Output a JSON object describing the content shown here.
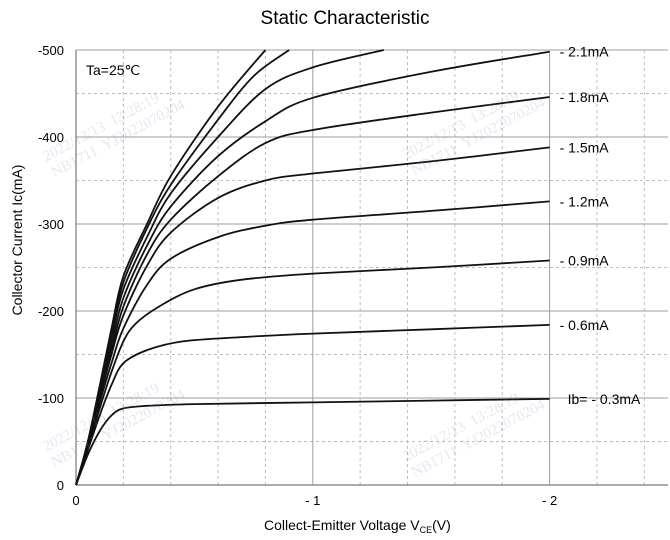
{
  "chart_data": {
    "type": "line",
    "title": "Static Characteristic",
    "xlabel_main": "Collect-Emitter Voltage   V",
    "xlabel_sub": "CE",
    "xlabel_unit": "(V)",
    "ylabel": "Collector  Current   Ic(mA)",
    "annotation": "Ta=25℃",
    "xlim": [
      0,
      -2.5
    ],
    "ylim": [
      0,
      -500
    ],
    "x_ticks": [
      0,
      -1,
      -2
    ],
    "x_tick_labels": [
      "0",
      "- 1",
      "- 2"
    ],
    "y_ticks": [
      0,
      -100,
      -200,
      -300,
      -400,
      -500
    ],
    "y_tick_labels": [
      "0",
      "-100",
      "-200",
      "-300",
      "-400",
      "-500"
    ],
    "grid": true,
    "series": [
      {
        "label": "Ib= - 0.3mA",
        "points": [
          [
            0,
            0
          ],
          [
            -0.05,
            -35
          ],
          [
            -0.1,
            -62
          ],
          [
            -0.15,
            -80
          ],
          [
            -0.2,
            -88
          ],
          [
            -0.3,
            -91
          ],
          [
            -0.5,
            -93
          ],
          [
            -1,
            -95
          ],
          [
            -1.5,
            -97
          ],
          [
            -2,
            -99
          ]
        ]
      },
      {
        "label": "- 0.6mA",
        "points": [
          [
            0,
            0
          ],
          [
            -0.05,
            -40
          ],
          [
            -0.1,
            -80
          ],
          [
            -0.15,
            -115
          ],
          [
            -0.2,
            -140
          ],
          [
            -0.3,
            -155
          ],
          [
            -0.45,
            -165
          ],
          [
            -0.7,
            -170
          ],
          [
            -1,
            -174
          ],
          [
            -1.5,
            -179
          ],
          [
            -2,
            -184
          ]
        ]
      },
      {
        "label": "- 0.9mA",
        "points": [
          [
            0,
            0
          ],
          [
            -0.05,
            -42
          ],
          [
            -0.1,
            -88
          ],
          [
            -0.15,
            -130
          ],
          [
            -0.2,
            -165
          ],
          [
            -0.25,
            -185
          ],
          [
            -0.35,
            -205
          ],
          [
            -0.5,
            -225
          ],
          [
            -0.7,
            -236
          ],
          [
            -1,
            -243
          ],
          [
            -1.5,
            -250
          ],
          [
            -2,
            -258
          ]
        ]
      },
      {
        "label": "- 1.2mA",
        "points": [
          [
            0,
            0
          ],
          [
            -0.05,
            -44
          ],
          [
            -0.1,
            -95
          ],
          [
            -0.15,
            -140
          ],
          [
            -0.2,
            -180
          ],
          [
            -0.3,
            -230
          ],
          [
            -0.4,
            -260
          ],
          [
            -0.6,
            -285
          ],
          [
            -0.8,
            -298
          ],
          [
            -1,
            -305
          ],
          [
            -1.5,
            -315
          ],
          [
            -2,
            -326
          ]
        ]
      },
      {
        "label": "- 1.5mA",
        "points": [
          [
            0,
            0
          ],
          [
            -0.05,
            -45
          ],
          [
            -0.1,
            -100
          ],
          [
            -0.15,
            -150
          ],
          [
            -0.2,
            -195
          ],
          [
            -0.3,
            -252
          ],
          [
            -0.4,
            -290
          ],
          [
            -0.6,
            -330
          ],
          [
            -0.8,
            -350
          ],
          [
            -1,
            -358
          ],
          [
            -1.5,
            -372
          ],
          [
            -2,
            -388
          ]
        ]
      },
      {
        "label": "- 1.8mA",
        "points": [
          [
            0,
            0
          ],
          [
            -0.05,
            -46
          ],
          [
            -0.1,
            -103
          ],
          [
            -0.15,
            -155
          ],
          [
            -0.2,
            -205
          ],
          [
            -0.3,
            -265
          ],
          [
            -0.4,
            -305
          ],
          [
            -0.6,
            -355
          ],
          [
            -0.8,
            -393
          ],
          [
            -1,
            -408
          ],
          [
            -1.5,
            -428
          ],
          [
            -2,
            -446
          ]
        ]
      },
      {
        "label": "- 2.1mA",
        "points": [
          [
            0,
            0
          ],
          [
            -0.05,
            -47
          ],
          [
            -0.1,
            -106
          ],
          [
            -0.15,
            -162
          ],
          [
            -0.2,
            -215
          ],
          [
            -0.3,
            -275
          ],
          [
            -0.4,
            -320
          ],
          [
            -0.6,
            -378
          ],
          [
            -0.8,
            -418
          ],
          [
            -1,
            -445
          ],
          [
            -1.5,
            -475
          ],
          [
            -2,
            -498
          ]
        ]
      },
      {
        "label": "",
        "points": [
          [
            0,
            0
          ],
          [
            -0.05,
            -48
          ],
          [
            -0.1,
            -110
          ],
          [
            -0.15,
            -170
          ],
          [
            -0.2,
            -225
          ],
          [
            -0.3,
            -285
          ],
          [
            -0.4,
            -335
          ],
          [
            -0.6,
            -400
          ],
          [
            -0.8,
            -455
          ],
          [
            -1,
            -480
          ],
          [
            -1.3,
            -500
          ]
        ]
      },
      {
        "label": "",
        "points": [
          [
            0,
            0
          ],
          [
            -0.05,
            -49
          ],
          [
            -0.1,
            -112
          ],
          [
            -0.15,
            -175
          ],
          [
            -0.2,
            -233
          ],
          [
            -0.3,
            -295
          ],
          [
            -0.4,
            -345
          ],
          [
            -0.6,
            -420
          ],
          [
            -0.75,
            -470
          ],
          [
            -0.9,
            -500
          ]
        ]
      },
      {
        "label": "",
        "points": [
          [
            0,
            0
          ],
          [
            -0.05,
            -50
          ],
          [
            -0.1,
            -114
          ],
          [
            -0.15,
            -180
          ],
          [
            -0.2,
            -240
          ],
          [
            -0.3,
            -300
          ],
          [
            -0.4,
            -355
          ],
          [
            -0.6,
            -435
          ],
          [
            -0.8,
            -500
          ]
        ]
      }
    ],
    "watermarks": [
      {
        "line1": "2022/12/13  13:28:19",
        "line2": "NB1711  YJ2022070204"
      },
      {
        "line1": "2022/12/13  13:28:19",
        "line2": "NB1711  YJ2022070204"
      },
      {
        "line1": "2022/12/13  13:28:19",
        "line2": "NB1711  YJ2022070204"
      },
      {
        "line1": "2022/12/13  13:28:19",
        "line2": "NB1711  YJ2022070204"
      }
    ]
  }
}
